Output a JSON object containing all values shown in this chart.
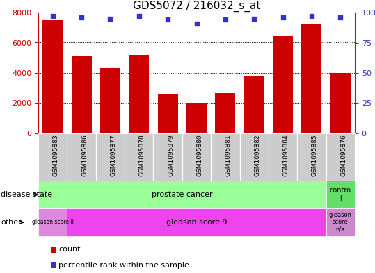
{
  "title": "GDS5072 / 216032_s_at",
  "samples": [
    "GSM1095883",
    "GSM1095886",
    "GSM1095877",
    "GSM1095878",
    "GSM1095879",
    "GSM1095880",
    "GSM1095881",
    "GSM1095882",
    "GSM1095884",
    "GSM1095885",
    "GSM1095876"
  ],
  "counts": [
    7500,
    5100,
    4300,
    5200,
    2600,
    2000,
    2650,
    3750,
    6450,
    7250,
    4000
  ],
  "percentiles": [
    97,
    96,
    95,
    97,
    94,
    91,
    94,
    95,
    96,
    97,
    96
  ],
  "ylim_left": [
    0,
    8000
  ],
  "ylim_right": [
    0,
    100
  ],
  "yticks_left": [
    0,
    2000,
    4000,
    6000,
    8000
  ],
  "yticks_right": [
    0,
    25,
    50,
    75,
    100
  ],
  "bar_color": "#cc0000",
  "dot_color": "#3333cc",
  "prostate_color": "#99ff99",
  "control_color": "#66dd66",
  "gleason8_color": "#dd88dd",
  "gleason9_color": "#ee44ee",
  "gleasonna_color": "#cc88cc",
  "tickbg_color": "#cccccc",
  "disease_state_label": "disease state",
  "other_label": "other",
  "prostate_text": "prostate cancer",
  "control_text": "contro\nl",
  "gleason8_text": "gleason score 8",
  "gleason9_text": "gleason score 9",
  "gleasonna_text": "gleason\nscore\nn/a",
  "legend_count": "count",
  "legend_pct": "percentile rank within the sample"
}
